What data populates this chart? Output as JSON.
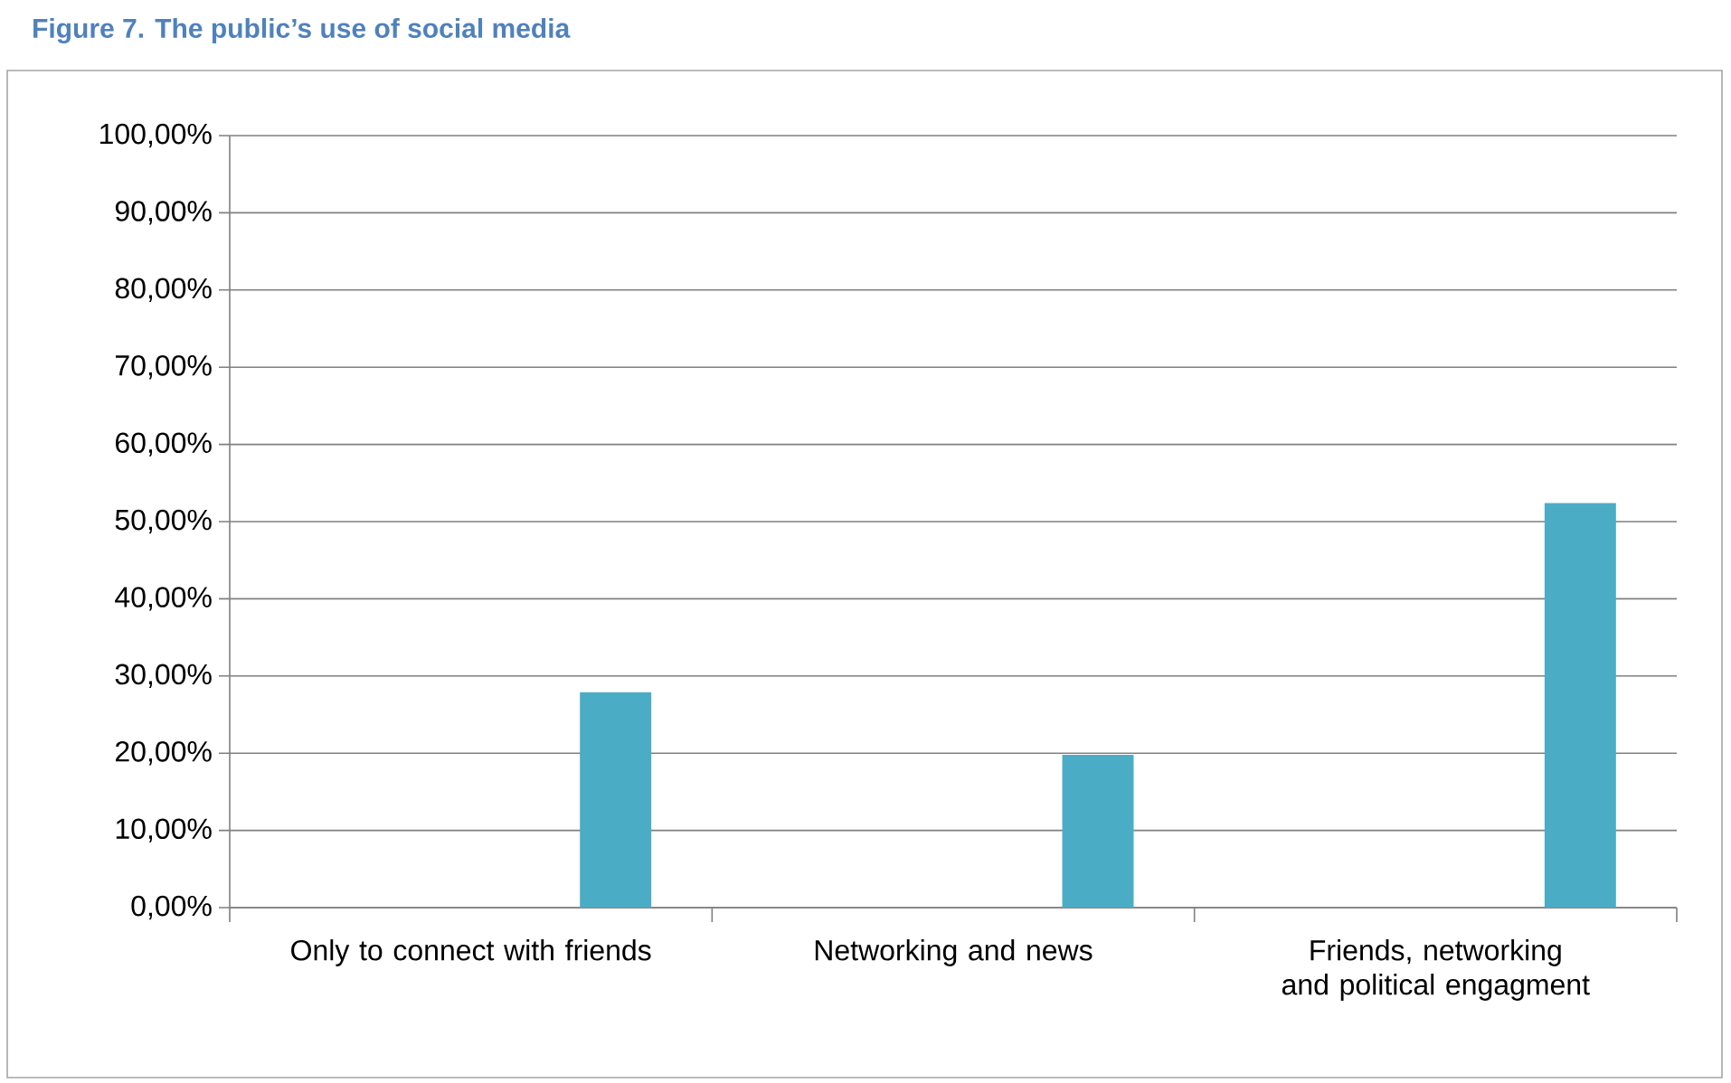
{
  "chart_data": {
    "type": "bar",
    "title": "Figure 7. The public’s use of social media",
    "categories": [
      "Only to connect with friends",
      "Networking and news",
      "Friends, networking and political engagment"
    ],
    "values": [
      27.9,
      19.8,
      52.4
    ],
    "color": "#4bacc6",
    "ylim": [
      0,
      100
    ],
    "yticks": [
      {
        "value": 0,
        "label": "0,00%"
      },
      {
        "value": 10,
        "label": "10,00%"
      },
      {
        "value": 20,
        "label": "20,00%"
      },
      {
        "value": 30,
        "label": "30,00%"
      },
      {
        "value": 40,
        "label": "40,00%"
      },
      {
        "value": 50,
        "label": "50,00%"
      },
      {
        "value": 60,
        "label": "60,00%"
      },
      {
        "value": 70,
        "label": "70,00%"
      },
      {
        "value": 80,
        "label": "80,00%"
      },
      {
        "value": 90,
        "label": "90,00%"
      },
      {
        "value": 100,
        "label": "100,00%"
      }
    ],
    "grid": "y"
  }
}
